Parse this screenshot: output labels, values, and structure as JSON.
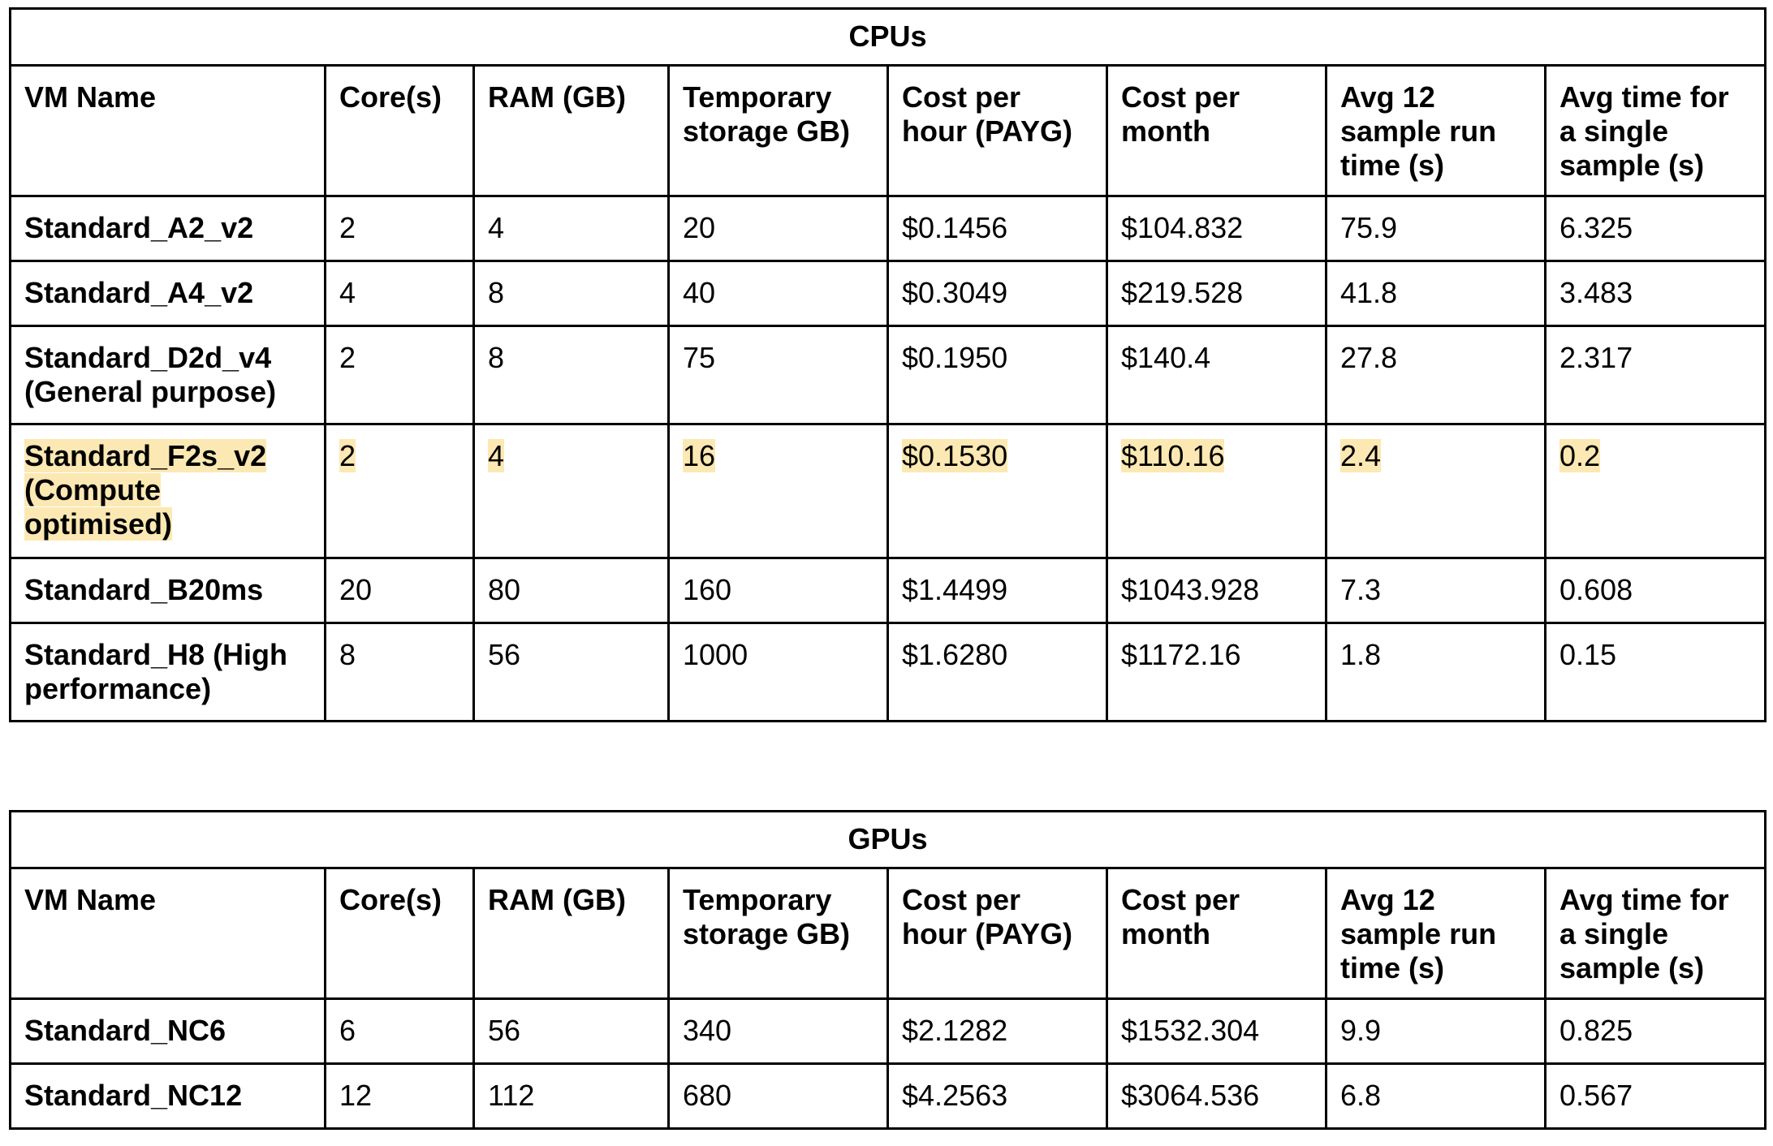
{
  "top_text": {
    "prefix": "",
    "link": ""
  },
  "headers": [
    "VM Name",
    "Core(s)",
    "RAM (GB)",
    "Temporary storage GB)",
    "Cost per hour (PAYG)",
    "Cost per month",
    "Avg 12 sample run time (s)",
    "Avg time for a single sample (s)"
  ],
  "cpu_table": {
    "title": "CPUs",
    "rows": [
      {
        "name": "Standard_A2_v2",
        "cores": "2",
        "ram": "4",
        "storage": "20",
        "cost_hour": "$0.1456",
        "cost_month": "$104.832",
        "avg12": "75.9",
        "avg_single": "6.325"
      },
      {
        "name": "Standard_A4_v2",
        "cores": "4",
        "ram": "8",
        "storage": "40",
        "cost_hour": "$0.3049",
        "cost_month": "$219.528",
        "avg12": "41.8",
        "avg_single": "3.483"
      },
      {
        "name": "Standard_D2d_v4 (General purpose)",
        "cores": "2",
        "ram": "8",
        "storage": "75",
        "cost_hour": "$0.1950",
        "cost_month": "$140.4",
        "avg12": "27.8",
        "avg_single": "2.317"
      },
      {
        "name": "Standard_F2s_v2 (Compute optimised)",
        "cores": "2",
        "ram": "4",
        "storage": "16",
        "cost_hour": "$0.1530",
        "cost_month": "$110.16",
        "avg12": "2.4",
        "avg_single": "0.2",
        "highlighted": true
      },
      {
        "name": "Standard_B20ms",
        "cores": "20",
        "ram": "80",
        "storage": "160",
        "cost_hour": "$1.4499",
        "cost_month": "$1043.928",
        "avg12": "7.3",
        "avg_single": "0.608"
      },
      {
        "name": "Standard_H8 (High performance)",
        "cores": "8",
        "ram": "56",
        "storage": "1000",
        "cost_hour": "$1.6280",
        "cost_month": "$1172.16",
        "avg12": "1.8",
        "avg_single": "0.15"
      }
    ]
  },
  "gpu_table": {
    "title": "GPUs",
    "rows": [
      {
        "name": "Standard_NC6",
        "cores": "6",
        "ram": "56",
        "storage": "340",
        "cost_hour": "$2.1282",
        "cost_month": "$1532.304",
        "avg12": "9.9",
        "avg_single": "0.825"
      },
      {
        "name": "Standard_NC12",
        "cores": "12",
        "ram": "112",
        "storage": "680",
        "cost_hour": "$4.2563",
        "cost_month": "$3064.536",
        "avg12": "6.8",
        "avg_single": "0.567"
      }
    ]
  },
  "colors": {
    "highlight": "#fce8b2",
    "border": "#000000",
    "link": "#1155cc"
  }
}
